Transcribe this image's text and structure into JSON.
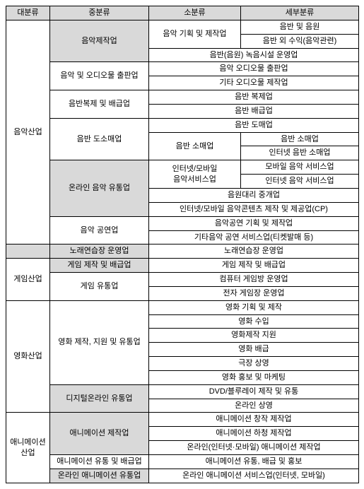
{
  "headers": {
    "h1": "대분류",
    "h2": "중분류",
    "h3": "소분류",
    "h4": "세부분류"
  },
  "t": {
    "music": "음악산업",
    "m_prod": "음악제작업",
    "m_plan": "음악 기획 및 제작업",
    "m_disc_src": "음반 및 음원",
    "m_other_rev": "음반 외 수익(음악관련)",
    "m_rec_fac": "음반(음원) 녹음시설 운영업",
    "m_pub": "음악 및 오디오물 출판업",
    "m_audio_pub": "음악 오디오물 출판업",
    "m_other_audio": "기타 오디오물 제작업",
    "m_dup_dist": "음반복제 및 배급업",
    "m_dup": "음반 복제업",
    "m_dist": "음반 배급업",
    "m_whole": "음반 도소매업",
    "m_whole_biz": "음반 도매업",
    "m_retail_biz": "음반 소매업",
    "m_retail_sub": "음반 소매업",
    "m_net_retail": "인터넷 음반 소매업",
    "m_online_dist": "온라인 음악 유통업",
    "m_net_mobile": "인터넷/모바일\n음악서비스업",
    "m_mobile_svc": "모바일 음악 서비스업",
    "m_net_svc": "인터넷 음악 서비스업",
    "m_agent": "음원대리 중개업",
    "m_cp": "인터넷/모바일 음악콘텐츠 제작 및 제공업(CP)",
    "m_perf": "음악 공연업",
    "m_perf_plan": "음악공연 기획 및 제작업",
    "m_perf_other": "기타음악 공연 서비스업(티켓발매 등)",
    "m_karaoke": "노래연습장 운영업",
    "m_karaoke_sub": "노래연습장 운영업",
    "game": "게임산업",
    "g_prod_dist": "게임 제작 및 배급업",
    "g_prod_dist_sub": "게임 제작 및 배급업",
    "g_dist": "게임 유통업",
    "g_pcroom": "컴퓨터 게임방 운영업",
    "g_arcade": "전자 게임장 운영업",
    "film": "영화산업",
    "f_prod_dist": "영화 제작, 지원 및 유통업",
    "f_plan": "영화 기획 및 제작",
    "f_import": "영화 수입",
    "f_support": "영화제작 지원",
    "f_dist2": "영화 배급",
    "f_theater": "극장 상영",
    "f_promo": "영화 홍보 및 마케팅",
    "f_digital": "디지털온라인 유통업",
    "f_dvd": "DVD/블루레이 제작 및 유통",
    "f_online_screen": "온라인 상영",
    "anim": "애니메이션\n산업",
    "a_prod": "애니메이션 제작업",
    "a_create": "애니메이션 창작 제작업",
    "a_sub": "애니메이션 하청 제작업",
    "a_online_prod": "온라인(인터넷·모바일) 애니메이션 제작업",
    "a_dist": "애니메이션 유통 및 배급업",
    "a_dist_sub": "애니메이션 유통, 배급 및 홍보",
    "a_online": "온라인 애니메이션 유통업",
    "a_online_sub": "온라인 애니메이션 서비스업(인터넷, 모바일)"
  }
}
